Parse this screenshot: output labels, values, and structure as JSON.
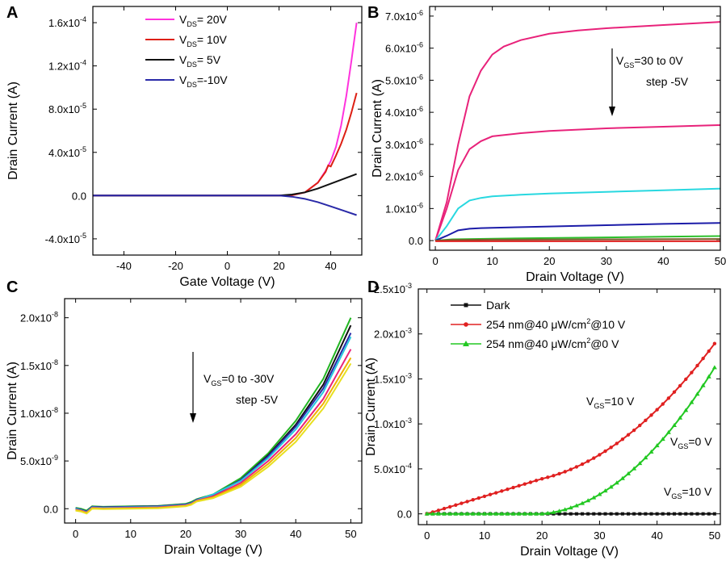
{
  "chart_data": [
    {
      "label": "A",
      "type": "line",
      "xlabel": "Gate Voltage (V)",
      "ylabel": "Drain Current  (A)",
      "xlim": [
        -52,
        52
      ],
      "ylim": [
        -5.5e-05,
        0.000175
      ],
      "xticks": [
        -40,
        -20,
        0,
        20,
        40
      ],
      "yticks": [
        {
          "v": -4e-05,
          "m": "-4.0x10",
          "e": "-5"
        },
        {
          "v": 0,
          "m": "0.0",
          "e": ""
        },
        {
          "v": 4e-05,
          "m": "4.0x10",
          "e": "-5"
        },
        {
          "v": 8e-05,
          "m": "8.0x10",
          "e": "-5"
        },
        {
          "v": 0.00012,
          "m": "1.2x10",
          "e": "-4"
        },
        {
          "v": 0.00016,
          "m": "1.6x10",
          "e": "-4"
        }
      ],
      "legend": [
        {
          "pre": "V",
          "sub": "DS",
          "post": "= 20V",
          "color": "#ff33dd"
        },
        {
          "pre": "V",
          "sub": "DS",
          "post": "= 10V",
          "color": "#dd1f14"
        },
        {
          "pre": "V",
          "sub": "DS",
          "post": "=  5V",
          "color": "#111111"
        },
        {
          "pre": "V",
          "sub": "DS",
          "post": "=-10V",
          "color": "#2a2aa8"
        }
      ],
      "series": [
        {
          "name": "VDS=20V",
          "color": "#ff33dd",
          "x": [
            -52,
            20,
            25,
            30,
            35,
            38,
            40,
            42,
            44,
            46,
            48,
            50
          ],
          "y": [
            0,
            0,
            3e-07,
            3e-06,
            1.2e-05,
            2.3e-05,
            3.2e-05,
            4.5e-05,
            6.5e-05,
            9.2e-05,
            0.000125,
            0.00016
          ]
        },
        {
          "name": "VDS=10V",
          "color": "#dd1f14",
          "x": [
            -52,
            20,
            25,
            30,
            35,
            38,
            39,
            40,
            42,
            44,
            46,
            48,
            50
          ],
          "y": [
            0,
            0,
            3e-07,
            3e-06,
            1.2e-05,
            2.2e-05,
            2.8e-05,
            2.7e-05,
            3.7e-05,
            4.8e-05,
            6.1e-05,
            7.7e-05,
            9.5e-05
          ]
        },
        {
          "name": "VDS=5V",
          "color": "#111111",
          "x": [
            -52,
            20,
            25,
            30,
            35,
            40,
            45,
            50
          ],
          "y": [
            0,
            0,
            1e-06,
            3e-06,
            6.5e-06,
            1.1e-05,
            1.55e-05,
            2e-05
          ]
        },
        {
          "name": "VDS=-10V",
          "color": "#2a2aa8",
          "x": [
            -52,
            20,
            25,
            30,
            35,
            40,
            45,
            50
          ],
          "y": [
            0,
            0,
            -1e-06,
            -3e-06,
            -6e-06,
            -1e-05,
            -1.4e-05,
            -1.8e-05
          ]
        }
      ]
    },
    {
      "label": "B",
      "type": "line",
      "xlabel": "Drain Voltage (V)",
      "ylabel": "Drain Current (A)",
      "xlim": [
        -1,
        50
      ],
      "ylim": [
        -3e-07,
        7.3e-06
      ],
      "xticks": [
        0,
        10,
        20,
        30,
        40,
        50
      ],
      "yticks": [
        {
          "v": 0,
          "m": "0.0",
          "e": ""
        },
        {
          "v": 1e-06,
          "m": "1.0x10",
          "e": "-6"
        },
        {
          "v": 2e-06,
          "m": "2.0x10",
          "e": "-6"
        },
        {
          "v": 3e-06,
          "m": "3.0x10",
          "e": "-6"
        },
        {
          "v": 4e-06,
          "m": "4.0x10",
          "e": "-6"
        },
        {
          "v": 5e-06,
          "m": "5.0x10",
          "e": "-6"
        },
        {
          "v": 6e-06,
          "m": "6.0x10",
          "e": "-6"
        },
        {
          "v": 7e-06,
          "m": "7.0x10",
          "e": "-6"
        }
      ],
      "annotation": {
        "pre": "V",
        "sub": "GS",
        "post": "=30 to 0V",
        "line2": "step -5V"
      },
      "series": [
        {
          "name": "VGS=30V",
          "color": "#e8227a",
          "x": [
            0,
            2,
            4,
            6,
            8,
            10,
            12,
            15,
            20,
            25,
            30,
            40,
            50
          ],
          "y": [
            0,
            1.2e-06,
            3e-06,
            4.5e-06,
            5.3e-06,
            5.8e-06,
            6.05e-06,
            6.25e-06,
            6.45e-06,
            6.55e-06,
            6.62e-06,
            6.72e-06,
            6.82e-06
          ]
        },
        {
          "name": "VGS=25V",
          "color": "#e8227a",
          "x": [
            0,
            2,
            4,
            6,
            8,
            10,
            15,
            20,
            30,
            40,
            50
          ],
          "y": [
            0,
            1e-06,
            2.2e-06,
            2.85e-06,
            3.1e-06,
            3.25e-06,
            3.35e-06,
            3.42e-06,
            3.5e-06,
            3.55e-06,
            3.6e-06
          ]
        },
        {
          "name": "VGS=20V",
          "color": "#28d8e0",
          "x": [
            0,
            2,
            4,
            6,
            8,
            10,
            15,
            20,
            30,
            40,
            50
          ],
          "y": [
            0,
            4.5e-07,
            1e-06,
            1.25e-06,
            1.33e-06,
            1.38e-06,
            1.43e-06,
            1.47e-06,
            1.52e-06,
            1.57e-06,
            1.62e-06
          ]
        },
        {
          "name": "VGS=15V",
          "color": "#1c1ca8",
          "x": [
            0,
            2,
            4,
            6,
            8,
            10,
            20,
            30,
            40,
            50
          ],
          "y": [
            0,
            1.5e-07,
            3.2e-07,
            3.7e-07,
            3.9e-07,
            4e-07,
            4.4e-07,
            4.8e-07,
            5.2e-07,
            5.5e-07
          ]
        },
        {
          "name": "VGS=10V",
          "color": "#2cc02c",
          "x": [
            0,
            3,
            10,
            20,
            30,
            40,
            50
          ],
          "y": [
            0,
            4e-08,
            6e-08,
            8e-08,
            1e-07,
            1.2e-07,
            1.4e-07
          ]
        },
        {
          "name": "VGS=5V",
          "color": "#7a5a2a",
          "x": [
            0,
            3,
            10,
            30,
            50
          ],
          "y": [
            0,
            2e-08,
            3e-08,
            4e-08,
            5e-08
          ]
        },
        {
          "name": "VGS=0V",
          "color": "#e02020",
          "x": [
            0,
            50
          ],
          "y": [
            -2e-08,
            -2e-08
          ]
        }
      ]
    },
    {
      "label": "C",
      "type": "line",
      "xlabel": "Drain Voltage (V)",
      "ylabel": "Drain Current (A)",
      "xlim": [
        -2,
        52
      ],
      "ylim": [
        -1.5e-09,
        2.2e-08
      ],
      "xticks": [
        0,
        10,
        20,
        30,
        40,
        50
      ],
      "yticks": [
        {
          "v": 0,
          "m": "0.0",
          "e": ""
        },
        {
          "v": 5e-09,
          "m": "5.0x10",
          "e": "-9"
        },
        {
          "v": 1e-08,
          "m": "1.0x10",
          "e": "-8"
        },
        {
          "v": 1.5e-08,
          "m": "1.5x10",
          "e": "-8"
        },
        {
          "v": 2e-08,
          "m": "2.0x10",
          "e": "-8"
        }
      ],
      "annotation": {
        "pre": "V",
        "sub": "GS",
        "post": "=0 to -30V",
        "line2": "step -5V"
      },
      "series": [
        {
          "name": "VGS=0V",
          "color": "#22b522",
          "x": [
            0,
            1,
            2,
            3,
            5,
            10,
            15,
            20,
            21,
            22,
            25,
            30,
            35,
            40,
            45,
            50
          ],
          "y": [
            1e-10,
            0.0,
            -2e-10,
            2.5e-10,
            2e-10,
            2.5e-10,
            3e-10,
            5e-10,
            7e-10,
            1e-09,
            1.5e-09,
            3.2e-09,
            5.8e-09,
            9.2e-09,
            1.36e-08,
            2e-08
          ]
        },
        {
          "name": "VGS=-5V",
          "color": "#111111",
          "x": [
            0,
            1,
            2,
            3,
            5,
            10,
            15,
            20,
            21,
            22,
            25,
            30,
            35,
            40,
            45,
            50
          ],
          "y": [
            0.0,
            -1e-10,
            -3e-10,
            2e-10,
            1.5e-10,
            2e-10,
            2.5e-10,
            4.5e-10,
            6e-10,
            9e-10,
            1.4e-09,
            3e-09,
            5.6e-09,
            8.8e-09,
            1.3e-08,
            1.92e-08
          ]
        },
        {
          "name": "VGS=-10V",
          "color": "#2a2aa8",
          "x": [
            0,
            1,
            2,
            3,
            5,
            10,
            15,
            20,
            21,
            22,
            25,
            30,
            35,
            40,
            45,
            50
          ],
          "y": [
            5e-11,
            -1e-10,
            -3e-10,
            2e-10,
            1.5e-10,
            2e-10,
            2.5e-10,
            4.5e-10,
            6e-10,
            9.5e-10,
            1.45e-09,
            3e-09,
            5.5e-09,
            8.6e-09,
            1.26e-08,
            1.84e-08
          ]
        },
        {
          "name": "VGS=-15V",
          "color": "#28c8e0",
          "x": [
            0,
            1,
            2,
            3,
            5,
            10,
            15,
            20,
            21,
            22,
            25,
            30,
            35,
            40,
            45,
            50
          ],
          "y": [
            0.0,
            -1.5e-10,
            -3.5e-10,
            1.5e-10,
            1e-10,
            1.5e-10,
            2e-10,
            4e-10,
            5.5e-10,
            9e-10,
            1.5e-09,
            2.9e-09,
            5.3e-09,
            8.3e-09,
            1.22e-08,
            1.8e-08
          ]
        },
        {
          "name": "VGS=-20V",
          "color": "#e8227a",
          "x": [
            0,
            1,
            2,
            3,
            5,
            10,
            15,
            20,
            21,
            22,
            25,
            30,
            35,
            40,
            45,
            50
          ],
          "y": [
            -1e-10,
            -2e-10,
            -4e-10,
            1e-10,
            5e-11,
            1e-10,
            1.5e-10,
            3.5e-10,
            5e-10,
            8.5e-10,
            1.3e-09,
            2.7e-09,
            5e-09,
            7.8e-09,
            1.15e-08,
            1.67e-08
          ]
        },
        {
          "name": "VGS=-25V",
          "color": "#f0b000",
          "x": [
            0,
            1,
            2,
            3,
            5,
            10,
            15,
            20,
            21,
            22,
            25,
            30,
            35,
            40,
            45,
            50
          ],
          "y": [
            -1.5e-10,
            -2.5e-10,
            -4.5e-10,
            5e-11,
            0.0,
            5e-11,
            1e-10,
            3e-10,
            4.5e-10,
            8e-10,
            1.2e-09,
            2.5e-09,
            4.7e-09,
            7.4e-09,
            1.1e-08,
            1.58e-08
          ]
        },
        {
          "name": "VGS=-30V",
          "color": "#e8e020",
          "x": [
            0,
            1,
            2,
            3,
            5,
            10,
            15,
            20,
            21,
            22,
            25,
            30,
            35,
            40,
            45,
            50
          ],
          "y": [
            -2e-10,
            -3e-10,
            -5e-10,
            0.0,
            -5e-11,
            0.0,
            5e-11,
            2.5e-10,
            4e-10,
            7.5e-10,
            1.1e-09,
            2.3e-09,
            4.4e-09,
            7e-09,
            1.05e-08,
            1.52e-08
          ]
        }
      ]
    },
    {
      "label": "D",
      "type": "line",
      "xlabel": "Drain Voltage (V)",
      "ylabel": "Drain Current (A)",
      "xlim": [
        -1.5,
        51
      ],
      "ylim": [
        -0.00012,
        0.0025
      ],
      "xticks": [
        0,
        10,
        20,
        30,
        40,
        50
      ],
      "yticks": [
        {
          "v": 0,
          "m": "0.0",
          "e": ""
        },
        {
          "v": 0.0005,
          "m": "5.0x10",
          "e": "-4"
        },
        {
          "v": 0.001,
          "m": "1.0x10",
          "e": "-3"
        },
        {
          "v": 0.0015,
          "m": "1.5x10",
          "e": "-3"
        },
        {
          "v": 0.002,
          "m": "2.0x10",
          "e": "-3"
        },
        {
          "v": 0.0025,
          "m": "2.5x10",
          "e": "-3"
        }
      ],
      "legend": [
        {
          "text": "Dark",
          "color": "#111111",
          "marker": "square"
        },
        {
          "text": "254 nm@40 μW/cm",
          "sup": "2",
          "tail": "@10 V",
          "color": "#e02020",
          "marker": "circle"
        },
        {
          "text": "254 nm@40 μW/cm",
          "sup": "2",
          "tail": "@0 V",
          "color": "#22c822",
          "marker": "triangle"
        }
      ],
      "annotations": [
        {
          "pre": "V",
          "sub": "GS",
          "post": "=10 V"
        },
        {
          "pre": "V",
          "sub": "GS",
          "post": "=0 V"
        },
        {
          "pre": "V",
          "sub": "GS",
          "post": "=10 V"
        }
      ],
      "series": [
        {
          "name": "Dark",
          "color": "#111111",
          "marker": "square",
          "fn": "dark"
        },
        {
          "name": "254 nm @10 V",
          "color": "#e02020",
          "marker": "circle",
          "fn": "red"
        },
        {
          "name": "254 nm @0 V",
          "color": "#22c822",
          "marker": "triangle",
          "fn": "green"
        }
      ]
    }
  ]
}
